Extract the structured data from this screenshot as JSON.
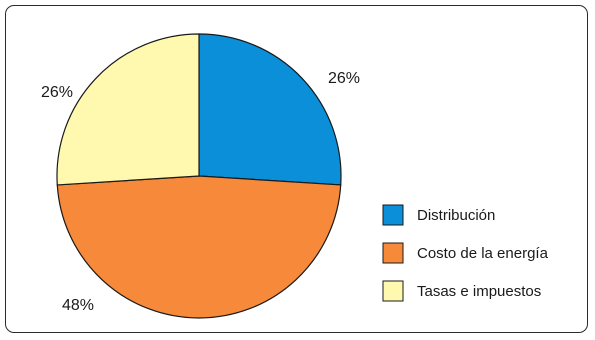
{
  "chart_data": {
    "type": "pie",
    "title": "",
    "slices": [
      {
        "label": "Distribución",
        "value": 26,
        "display": "26%",
        "color": "#0a8fd8"
      },
      {
        "label": "Costo de la energía",
        "value": 48,
        "display": "48%",
        "color": "#f6893a"
      },
      {
        "label": "Tasas e impuestos",
        "value": 26,
        "display": "26%",
        "color": "#fff9b0"
      }
    ],
    "start_angle_deg": 0,
    "direction": "clockwise",
    "legend_position": "right"
  }
}
